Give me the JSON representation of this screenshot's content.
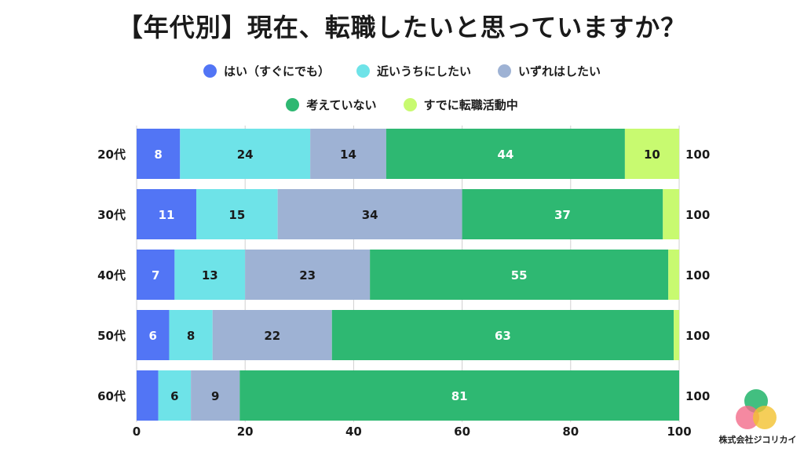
{
  "chart_data": {
    "type": "bar",
    "orientation": "horizontal",
    "stacked": true,
    "title": "【年代別】現在、転職したいと思っていますか？",
    "categories": [
      "20代",
      "30代",
      "40代",
      "50代",
      "60代"
    ],
    "series": [
      {
        "name": "はい（すぐにでも）",
        "color": "#5275f5",
        "values": [
          8,
          11,
          7,
          6,
          4
        ]
      },
      {
        "name": "近いうちにしたい",
        "color": "#6ee3e8",
        "values": [
          24,
          15,
          13,
          8,
          6
        ]
      },
      {
        "name": "いずれはしたい",
        "color": "#9eb2d4",
        "values": [
          14,
          34,
          23,
          22,
          9
        ]
      },
      {
        "name": "考えていない",
        "color": "#2eb872",
        "values": [
          44,
          37,
          55,
          63,
          81
        ]
      },
      {
        "name": "すでに転職活動中",
        "color": "#c8fa70",
        "values": [
          10,
          3,
          2,
          1,
          0
        ]
      }
    ],
    "data_label_colors": [
      "#ffffff",
      "#1a1a1a",
      "#1a1a1a",
      "#ffffff",
      "#1a1a1a"
    ],
    "hidden_labels_below": 5,
    "totals": [
      100,
      100,
      100,
      100,
      100
    ],
    "xlim": [
      0,
      100
    ],
    "xticks": [
      0,
      20,
      40,
      60,
      80,
      100
    ],
    "grid": true,
    "legend_position": "top"
  },
  "company": {
    "name": "株式会社ジコリカイ",
    "logo_colors": [
      "#2eb872",
      "#f26b8a",
      "#f2c230"
    ]
  }
}
